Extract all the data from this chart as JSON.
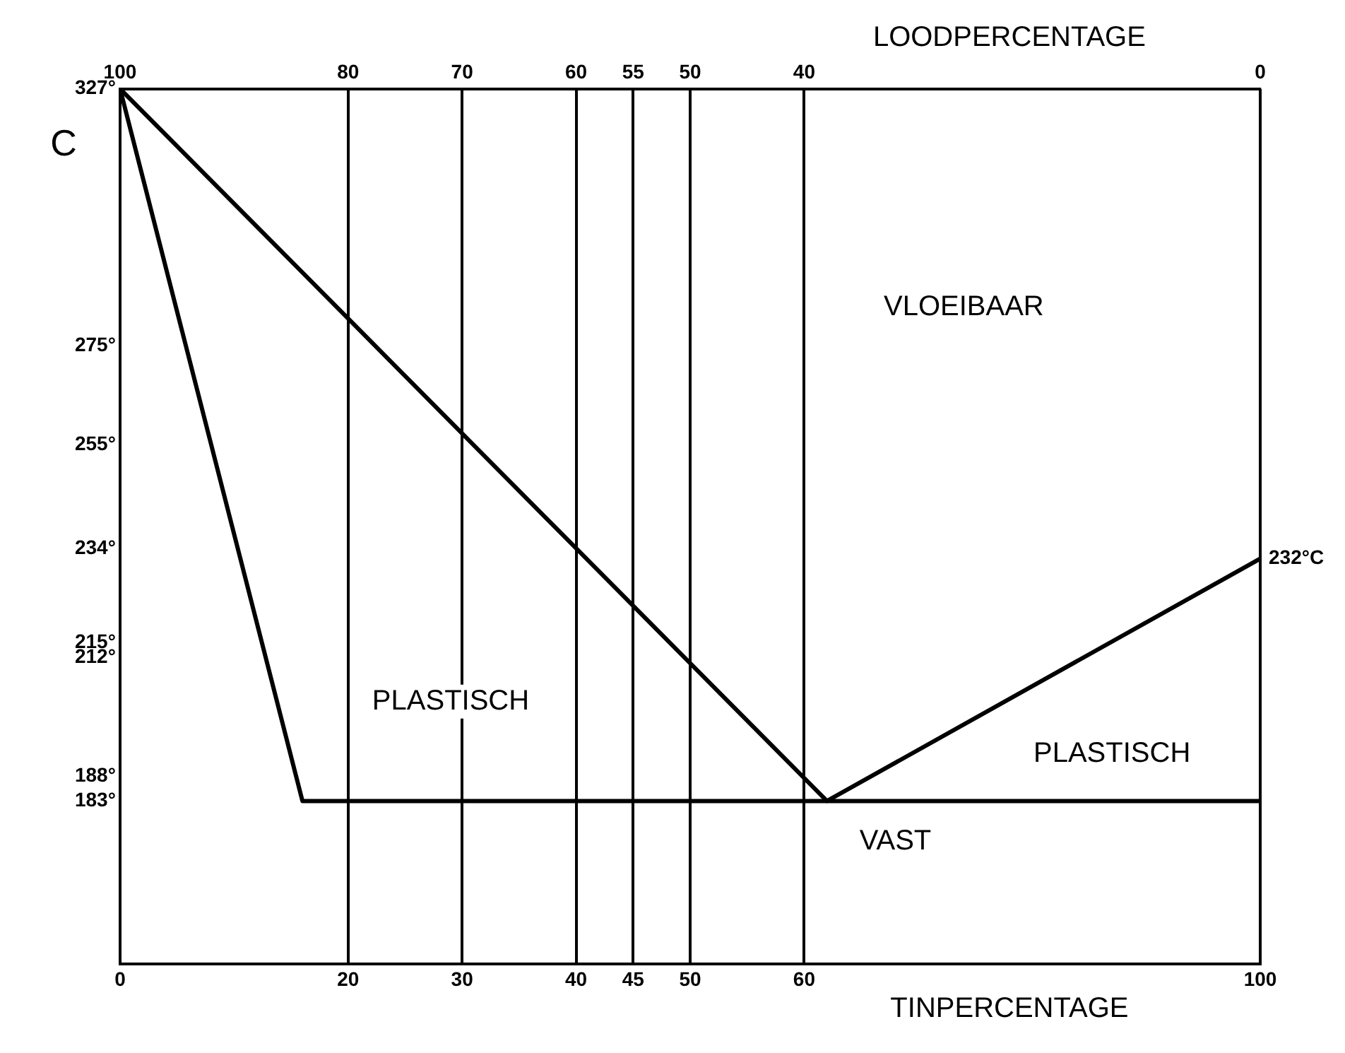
{
  "chart_data": {
    "type": "line",
    "xlabel": "TINPERCENTAGE",
    "x2label": "LOODPERCENTAGE",
    "ylabel": "C",
    "xlim": [
      0,
      100
    ],
    "xticks": [
      0,
      20,
      30,
      40,
      45,
      50,
      60,
      100
    ],
    "x2lim": [
      100,
      0
    ],
    "x2ticks": [
      100,
      80,
      70,
      60,
      55,
      50,
      40,
      0
    ],
    "ylim": [
      150,
      327
    ],
    "yticks": [
      {
        "value": 327,
        "label": "327°"
      },
      {
        "value": 275,
        "label": "275°"
      },
      {
        "value": 255,
        "label": "255°"
      },
      {
        "value": 234,
        "label": "234°"
      },
      {
        "value": 215,
        "label": "215°"
      },
      {
        "value": 212,
        "label": "212°"
      },
      {
        "value": 188,
        "label": "188°"
      },
      {
        "value": 183,
        "label": "183°"
      }
    ],
    "grid": "x",
    "marker": "none",
    "line_style": "solid",
    "series": [
      {
        "color": "#000000",
        "x": [
          0,
          62,
          100
        ],
        "values": [
          327,
          183,
          232
        ]
      },
      {
        "color": "#000000",
        "x": [
          0,
          16,
          100
        ],
        "values": [
          327,
          183,
          183
        ]
      }
    ],
    "annotations": [
      "VLOEIBAAR",
      "PLASTISCH",
      "PLASTISCH",
      "VAST",
      {
        "text": "232°C",
        "x": 100,
        "y": 232
      }
    ]
  }
}
